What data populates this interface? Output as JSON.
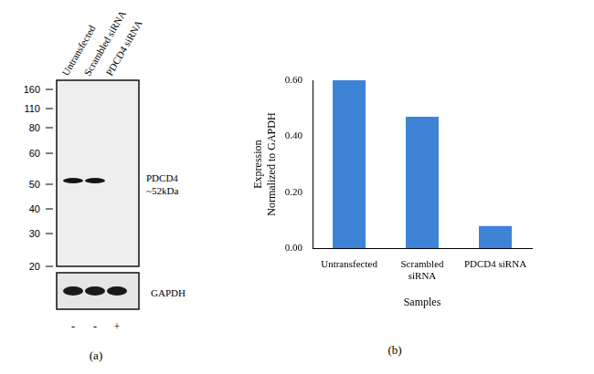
{
  "blot": {
    "panel_label": "(a)",
    "lanes": [
      {
        "label": "Untransfected",
        "sign": "-"
      },
      {
        "label": "Scrambled siRNA",
        "sign": "-"
      },
      {
        "label": "PDCD4 siRNA",
        "sign": "+"
      }
    ],
    "markers": [
      160,
      110,
      80,
      60,
      50,
      40,
      30,
      20
    ],
    "target": {
      "label": [
        "PDCD4",
        "~52kDa"
      ],
      "bands": [
        true,
        true,
        false
      ]
    },
    "control": {
      "label": "GAPDH",
      "bands": [
        true,
        true,
        true
      ]
    }
  },
  "chart_data": {
    "type": "bar",
    "annotations": [
      "(b)"
    ],
    "x_label": "Samples",
    "y_label": [
      "Expression",
      "Normalized to GAPDH"
    ],
    "categories": [
      "Untransfected",
      "Scrambled siRNA",
      "PDCD4 siRNA"
    ],
    "values": [
      0.6,
      0.47,
      0.08
    ],
    "color": "#3f83d6",
    "ylim": [
      0,
      0.6
    ],
    "yticks": [
      {
        "value": 0,
        "label": "0.00"
      },
      {
        "value": 0.2,
        "label": "0.20"
      },
      {
        "value": 0.4,
        "label": "0.40"
      },
      {
        "value": 0.6,
        "label": "0.60"
      }
    ],
    "grid": false
  }
}
